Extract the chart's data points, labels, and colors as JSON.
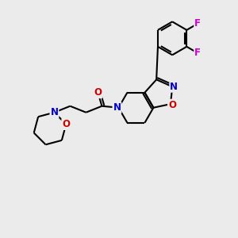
{
  "bg_color": "#ebebeb",
  "bond_color": "#000000",
  "bond_width": 1.5,
  "atom_colors": {
    "N": "#0000cc",
    "O": "#cc0000",
    "F": "#cc00cc",
    "C": "#000000"
  },
  "font_size": 8.5,
  "figsize": [
    3.0,
    3.0
  ],
  "dpi": 100
}
